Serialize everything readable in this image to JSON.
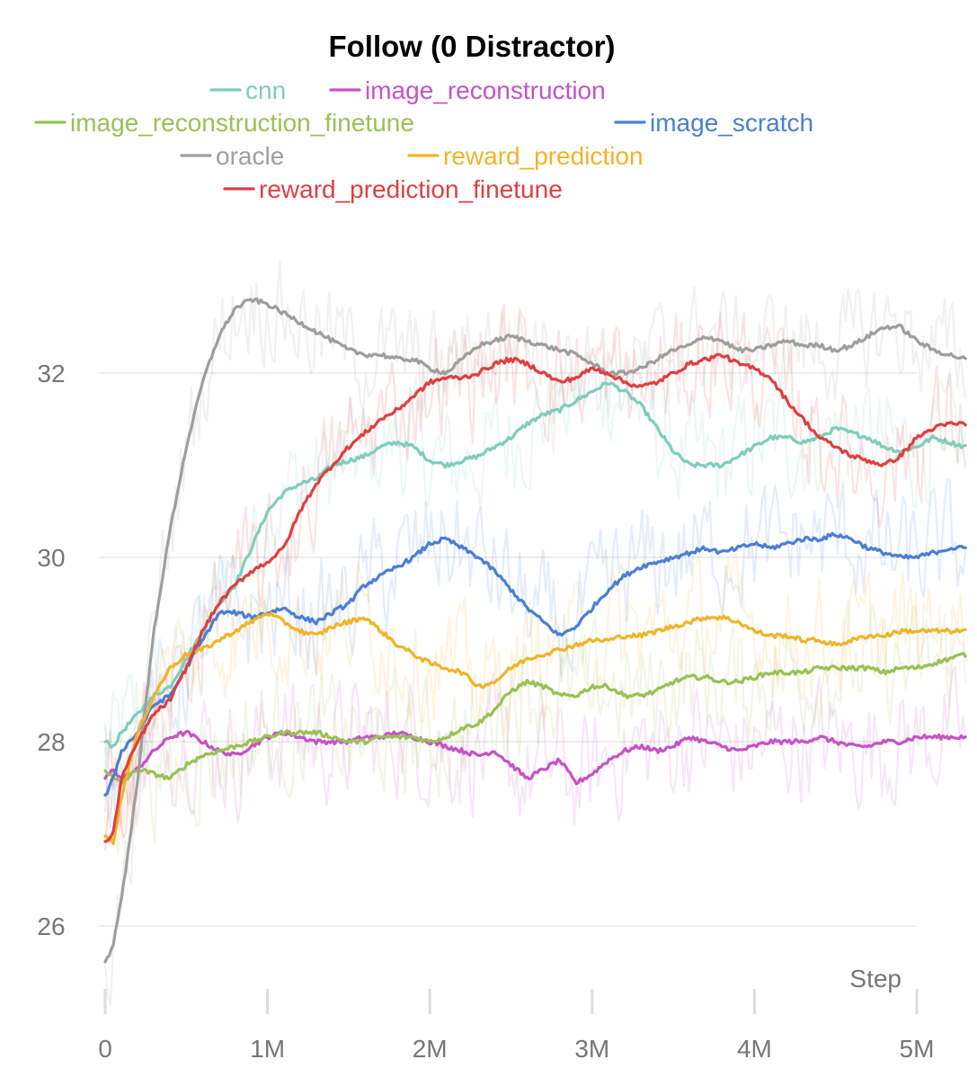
{
  "chart_data": {
    "type": "line",
    "title": "Follow (0 Distractor)",
    "xlabel": "Step",
    "ylabel": "",
    "xlim": [
      0,
      5300000
    ],
    "ylim": [
      25.2,
      33.6
    ],
    "x_ticks": [
      {
        "value": 0,
        "label": "0"
      },
      {
        "value": 1000000,
        "label": "1M"
      },
      {
        "value": 2000000,
        "label": "2M"
      },
      {
        "value": 3000000,
        "label": "3M"
      },
      {
        "value": 4000000,
        "label": "4M"
      },
      {
        "value": 5000000,
        "label": "5M"
      }
    ],
    "y_ticks": [
      {
        "value": 26,
        "label": "26"
      },
      {
        "value": 28,
        "label": "28"
      },
      {
        "value": 30,
        "label": "30"
      },
      {
        "value": 32,
        "label": "32"
      }
    ],
    "grid": "horizontal",
    "legend_position": "top",
    "series": [
      {
        "name": "cnn",
        "color": "#7fcdbb",
        "x": [
          0,
          50000,
          100000,
          200000,
          300000,
          400000,
          500000,
          600000,
          700000,
          800000,
          900000,
          1000000,
          1100000,
          1200000,
          1300000,
          1400000,
          1500000,
          1600000,
          1700000,
          1800000,
          1900000,
          2000000,
          2100000,
          2200000,
          2300000,
          2400000,
          2500000,
          2600000,
          2700000,
          2800000,
          2900000,
          3000000,
          3100000,
          3200000,
          3300000,
          3400000,
          3500000,
          3600000,
          3700000,
          3800000,
          3900000,
          4000000,
          4100000,
          4200000,
          4300000,
          4400000,
          4500000,
          4600000,
          4700000,
          4800000,
          4900000,
          5000000,
          5100000,
          5200000,
          5300000
        ],
        "y": [
          28.0,
          27.95,
          28.1,
          28.3,
          28.5,
          28.6,
          28.9,
          29.2,
          29.5,
          29.7,
          30.1,
          30.5,
          30.7,
          30.8,
          30.85,
          31.0,
          31.05,
          31.1,
          31.2,
          31.25,
          31.2,
          31.05,
          31.0,
          31.05,
          31.1,
          31.2,
          31.3,
          31.45,
          31.55,
          31.6,
          31.7,
          31.8,
          31.9,
          31.8,
          31.65,
          31.4,
          31.15,
          31.0,
          31.0,
          31.0,
          31.1,
          31.2,
          31.3,
          31.3,
          31.25,
          31.3,
          31.4,
          31.35,
          31.3,
          31.2,
          31.15,
          31.2,
          31.3,
          31.25,
          31.2
        ]
      },
      {
        "name": "image_reconstruction",
        "color": "#c553c5",
        "x": [
          0,
          50000,
          100000,
          200000,
          300000,
          400000,
          500000,
          600000,
          700000,
          800000,
          900000,
          1000000,
          1100000,
          1200000,
          1300000,
          1400000,
          1500000,
          1600000,
          1700000,
          1800000,
          1900000,
          2000000,
          2100000,
          2200000,
          2300000,
          2400000,
          2500000,
          2600000,
          2700000,
          2800000,
          2900000,
          3000000,
          3100000,
          3200000,
          3300000,
          3400000,
          3500000,
          3600000,
          3700000,
          3800000,
          3900000,
          4000000,
          4100000,
          4200000,
          4300000,
          4400000,
          4500000,
          4600000,
          4700000,
          4800000,
          4900000,
          5000000,
          5100000,
          5200000,
          5300000
        ],
        "y": [
          27.6,
          27.7,
          27.6,
          27.7,
          27.9,
          28.05,
          28.1,
          28.0,
          27.9,
          27.85,
          27.95,
          28.05,
          28.1,
          28.05,
          28.0,
          28.0,
          28.0,
          28.05,
          28.05,
          28.1,
          28.05,
          28.0,
          27.95,
          27.9,
          27.85,
          27.9,
          27.75,
          27.6,
          27.7,
          27.8,
          27.55,
          27.65,
          27.8,
          27.9,
          27.95,
          27.9,
          27.95,
          28.05,
          28.0,
          27.95,
          27.9,
          27.95,
          28.0,
          28.0,
          28.0,
          28.05,
          28.0,
          27.95,
          27.95,
          28.0,
          28.0,
          28.05,
          28.05,
          28.05,
          28.05
        ]
      },
      {
        "name": "image_reconstruction_finetune",
        "color": "#99c156",
        "x": [
          0,
          50000,
          100000,
          200000,
          300000,
          400000,
          500000,
          600000,
          700000,
          800000,
          900000,
          1000000,
          1100000,
          1200000,
          1300000,
          1400000,
          1500000,
          1600000,
          1700000,
          1800000,
          1900000,
          2000000,
          2100000,
          2200000,
          2300000,
          2400000,
          2500000,
          2600000,
          2700000,
          2800000,
          2900000,
          3000000,
          3100000,
          3200000,
          3300000,
          3400000,
          3500000,
          3600000,
          3700000,
          3800000,
          3900000,
          4000000,
          4100000,
          4200000,
          4300000,
          4400000,
          4500000,
          4600000,
          4700000,
          4800000,
          4900000,
          5000000,
          5100000,
          5200000,
          5300000
        ],
        "y": [
          27.7,
          27.6,
          27.55,
          27.7,
          27.65,
          27.6,
          27.75,
          27.85,
          27.9,
          27.95,
          28.0,
          28.05,
          28.1,
          28.1,
          28.1,
          28.05,
          28.0,
          28.0,
          28.05,
          28.05,
          28.05,
          28.0,
          28.05,
          28.15,
          28.2,
          28.35,
          28.55,
          28.65,
          28.6,
          28.5,
          28.5,
          28.6,
          28.6,
          28.5,
          28.5,
          28.55,
          28.65,
          28.7,
          28.7,
          28.65,
          28.65,
          28.7,
          28.75,
          28.75,
          28.75,
          28.8,
          28.8,
          28.8,
          28.8,
          28.75,
          28.8,
          28.8,
          28.85,
          28.9,
          28.95
        ]
      },
      {
        "name": "image_scratch",
        "color": "#4a7fd4",
        "x": [
          0,
          50000,
          100000,
          200000,
          300000,
          400000,
          500000,
          600000,
          700000,
          800000,
          900000,
          1000000,
          1100000,
          1200000,
          1300000,
          1400000,
          1500000,
          1600000,
          1700000,
          1800000,
          1900000,
          2000000,
          2100000,
          2200000,
          2300000,
          2400000,
          2500000,
          2600000,
          2700000,
          2800000,
          2900000,
          3000000,
          3100000,
          3200000,
          3300000,
          3400000,
          3500000,
          3600000,
          3700000,
          3800000,
          3900000,
          4000000,
          4100000,
          4200000,
          4300000,
          4400000,
          4500000,
          4600000,
          4700000,
          4800000,
          4900000,
          5000000,
          5100000,
          5200000,
          5300000
        ],
        "y": [
          27.4,
          27.6,
          27.9,
          28.1,
          28.4,
          28.5,
          28.8,
          29.1,
          29.4,
          29.4,
          29.35,
          29.4,
          29.45,
          29.35,
          29.3,
          29.4,
          29.5,
          29.7,
          29.8,
          29.9,
          30.0,
          30.15,
          30.2,
          30.1,
          30.0,
          29.85,
          29.65,
          29.45,
          29.3,
          29.15,
          29.25,
          29.45,
          29.65,
          29.8,
          29.9,
          29.95,
          30.0,
          30.05,
          30.1,
          30.05,
          30.1,
          30.15,
          30.1,
          30.15,
          30.2,
          30.2,
          30.25,
          30.2,
          30.1,
          30.05,
          30.0,
          30.0,
          30.05,
          30.1,
          30.1
        ]
      },
      {
        "name": "oracle",
        "color": "#9e9e9e",
        "x": [
          0,
          50000,
          100000,
          150000,
          200000,
          250000,
          300000,
          400000,
          500000,
          600000,
          700000,
          800000,
          900000,
          1000000,
          1100000,
          1200000,
          1300000,
          1400000,
          1500000,
          1600000,
          1700000,
          1800000,
          1900000,
          2000000,
          2100000,
          2200000,
          2300000,
          2400000,
          2500000,
          2600000,
          2700000,
          2800000,
          2900000,
          3000000,
          3100000,
          3200000,
          3300000,
          3400000,
          3500000,
          3600000,
          3700000,
          3800000,
          3900000,
          4000000,
          4100000,
          4200000,
          4300000,
          4400000,
          4500000,
          4600000,
          4700000,
          4800000,
          4900000,
          5000000,
          5100000,
          5200000,
          5300000
        ],
        "y": [
          25.6,
          25.8,
          26.3,
          26.9,
          27.6,
          28.4,
          29.2,
          30.3,
          31.2,
          31.9,
          32.4,
          32.7,
          32.8,
          32.75,
          32.65,
          32.55,
          32.45,
          32.35,
          32.25,
          32.2,
          32.2,
          32.15,
          32.15,
          32.05,
          32.0,
          32.15,
          32.3,
          32.35,
          32.4,
          32.35,
          32.3,
          32.25,
          32.2,
          32.1,
          32.0,
          32.0,
          32.05,
          32.15,
          32.25,
          32.3,
          32.4,
          32.35,
          32.25,
          32.25,
          32.3,
          32.35,
          32.3,
          32.3,
          32.25,
          32.3,
          32.4,
          32.5,
          32.5,
          32.35,
          32.25,
          32.2,
          32.15
        ]
      },
      {
        "name": "reward_prediction",
        "color": "#f0b429",
        "x": [
          0,
          50000,
          100000,
          200000,
          300000,
          400000,
          500000,
          600000,
          700000,
          800000,
          900000,
          1000000,
          1100000,
          1200000,
          1300000,
          1400000,
          1500000,
          1600000,
          1700000,
          1800000,
          1900000,
          2000000,
          2100000,
          2200000,
          2300000,
          2400000,
          2500000,
          2600000,
          2700000,
          2800000,
          2900000,
          3000000,
          3100000,
          3200000,
          3300000,
          3400000,
          3500000,
          3600000,
          3700000,
          3800000,
          3900000,
          4000000,
          4100000,
          4200000,
          4300000,
          4400000,
          4500000,
          4600000,
          4700000,
          4800000,
          4900000,
          5000000,
          5100000,
          5200000,
          5300000
        ],
        "y": [
          27.0,
          26.9,
          27.4,
          28.1,
          28.5,
          28.8,
          28.95,
          29.0,
          29.1,
          29.2,
          29.3,
          29.4,
          29.3,
          29.2,
          29.15,
          29.25,
          29.3,
          29.35,
          29.2,
          29.05,
          28.95,
          28.85,
          28.8,
          28.75,
          28.6,
          28.65,
          28.8,
          28.9,
          28.95,
          29.0,
          29.05,
          29.1,
          29.1,
          29.15,
          29.15,
          29.2,
          29.25,
          29.3,
          29.35,
          29.35,
          29.3,
          29.2,
          29.15,
          29.15,
          29.1,
          29.1,
          29.05,
          29.1,
          29.15,
          29.15,
          29.2,
          29.2,
          29.2,
          29.2,
          29.2
        ]
      },
      {
        "name": "reward_prediction_finetune",
        "color": "#de4040",
        "x": [
          0,
          50000,
          100000,
          200000,
          300000,
          400000,
          500000,
          600000,
          700000,
          800000,
          900000,
          1000000,
          1100000,
          1200000,
          1300000,
          1400000,
          1500000,
          1600000,
          1700000,
          1800000,
          1900000,
          2000000,
          2100000,
          2200000,
          2300000,
          2400000,
          2500000,
          2600000,
          2700000,
          2800000,
          2900000,
          3000000,
          3100000,
          3200000,
          3300000,
          3400000,
          3500000,
          3600000,
          3700000,
          3800000,
          3900000,
          4000000,
          4100000,
          4200000,
          4300000,
          4400000,
          4500000,
          4600000,
          4700000,
          4800000,
          4900000,
          5000000,
          5100000,
          5200000,
          5300000
        ],
        "y": [
          26.9,
          27.0,
          27.6,
          28.0,
          28.3,
          28.45,
          28.8,
          29.2,
          29.5,
          29.7,
          29.85,
          29.95,
          30.1,
          30.5,
          30.8,
          31.0,
          31.2,
          31.35,
          31.5,
          31.6,
          31.75,
          31.9,
          31.95,
          31.95,
          32.0,
          32.1,
          32.15,
          32.1,
          32.0,
          31.9,
          31.95,
          32.05,
          32.0,
          31.9,
          31.85,
          31.9,
          32.0,
          32.1,
          32.15,
          32.2,
          32.1,
          32.05,
          31.95,
          31.7,
          31.5,
          31.3,
          31.2,
          31.1,
          31.05,
          31.0,
          31.1,
          31.3,
          31.4,
          31.45,
          31.45
        ]
      }
    ]
  }
}
